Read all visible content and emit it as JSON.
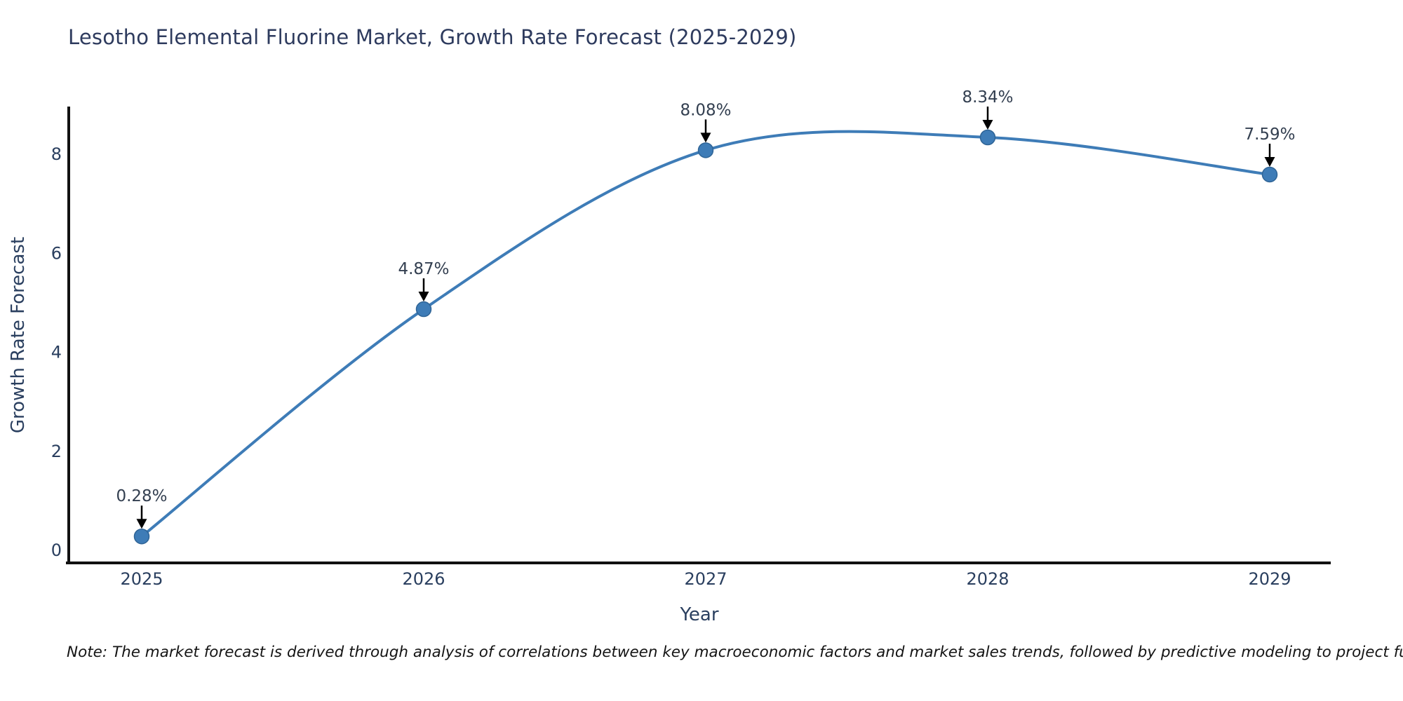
{
  "title": "Lesotho Elemental Fluorine Market, Growth Rate Forecast (2025-2029)",
  "note": "Note: The market forecast is derived through analysis of correlations between key macroeconomic factors and market sales trends, followed by predictive modeling to project future sales.",
  "chart_data": {
    "type": "line",
    "x": [
      2025,
      2026,
      2027,
      2028,
      2029
    ],
    "series": [
      {
        "name": "Growth Rate Forecast",
        "values": [
          0.28,
          4.87,
          8.08,
          8.34,
          7.59
        ]
      }
    ],
    "point_labels": [
      "0.28%",
      "4.87%",
      "8.08%",
      "8.34%",
      "7.59%"
    ],
    "title": "Lesotho Elemental Fluorine Market, Growth Rate Forecast (2025-2029)",
    "xlabel": "Year",
    "ylabel": "Growth Rate Forecast",
    "yticks": [
      0,
      2,
      4,
      6,
      8
    ],
    "ylim": [
      -0.25,
      9.2
    ],
    "xlim": [
      2024.74,
      2029.22
    ],
    "line_shape": "spline",
    "grid": false,
    "legend_position": "none",
    "colors": {
      "line": "#3e7cb7",
      "marker": "#3e7cb7",
      "marker_edge": "#2f6496",
      "axis": "#111111",
      "label_text": "#2a3f5f",
      "annotation_text": "#333f50",
      "arrow": "#000000",
      "background": "#ffffff"
    }
  }
}
